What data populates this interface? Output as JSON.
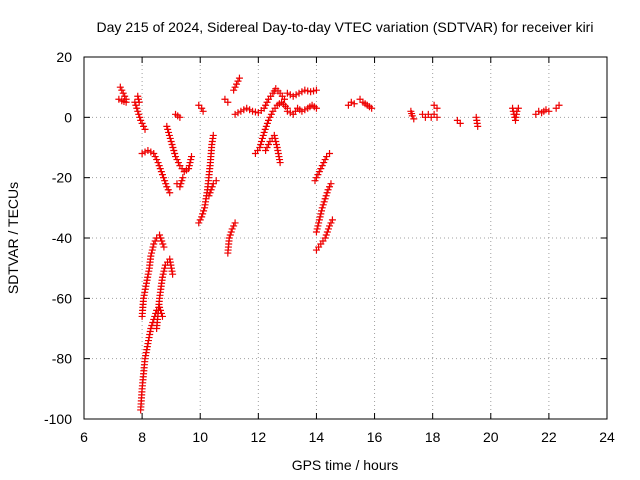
{
  "chart_data": {
    "type": "scatter",
    "title": "Day 215 of 2024, Sidereal Day-to-day VTEC variation (SDTVAR) for receiver kiri",
    "xlabel": "GPS time / hours",
    "ylabel": "SDTVAR / TECUs",
    "xlim": [
      6,
      24
    ],
    "ylim": [
      -100,
      20
    ],
    "xticks": [
      "6",
      "8",
      "10",
      "12",
      "14",
      "16",
      "18",
      "20",
      "22",
      "24"
    ],
    "yticks": [
      "20",
      "0",
      "-20",
      "-40",
      "-60",
      "-80",
      "-100"
    ],
    "grid": true,
    "marker": "plus",
    "color": "#ee0000",
    "arcs": [
      [
        [
          7.25,
          10
        ],
        [
          7.35,
          8
        ],
        [
          7.45,
          6
        ]
      ],
      [
        [
          7.2,
          6
        ],
        [
          7.3,
          5.5
        ],
        [
          7.45,
          5
        ]
      ],
      [
        [
          7.75,
          5
        ],
        [
          7.85,
          2
        ],
        [
          7.95,
          -1
        ],
        [
          8.05,
          -3
        ],
        [
          8.1,
          -4
        ]
      ],
      [
        [
          7.85,
          7
        ],
        [
          7.9,
          5
        ]
      ],
      [
        [
          8.0,
          -12
        ],
        [
          8.2,
          -11
        ],
        [
          8.4,
          -12
        ],
        [
          8.55,
          -15
        ],
        [
          8.7,
          -19
        ],
        [
          8.85,
          -23
        ],
        [
          8.95,
          -25
        ]
      ],
      [
        [
          8.0,
          -66
        ],
        [
          8.05,
          -60
        ],
        [
          8.15,
          -55
        ],
        [
          8.25,
          -50
        ],
        [
          8.3,
          -46
        ],
        [
          8.4,
          -42
        ],
        [
          8.5,
          -40
        ],
        [
          8.6,
          -39
        ],
        [
          8.75,
          -43
        ]
      ],
      [
        [
          7.95,
          -97
        ],
        [
          8.0,
          -90
        ],
        [
          8.05,
          -85
        ],
        [
          8.1,
          -80
        ],
        [
          8.2,
          -75
        ],
        [
          8.3,
          -70
        ],
        [
          8.4,
          -67
        ],
        [
          8.5,
          -64
        ],
        [
          8.6,
          -63
        ],
        [
          8.7,
          -66
        ]
      ],
      [
        [
          8.5,
          -70
        ],
        [
          8.6,
          -60
        ],
        [
          8.7,
          -53
        ],
        [
          8.8,
          -49
        ],
        [
          8.95,
          -47
        ],
        [
          9.05,
          -52
        ]
      ],
      [
        [
          8.85,
          -3
        ],
        [
          9.0,
          -8
        ],
        [
          9.15,
          -13
        ],
        [
          9.3,
          -16
        ],
        [
          9.45,
          -18
        ],
        [
          9.6,
          -17
        ],
        [
          9.7,
          -13
        ]
      ],
      [
        [
          9.15,
          1
        ],
        [
          9.3,
          0
        ]
      ],
      [
        [
          9.2,
          -22
        ],
        [
          9.3,
          -23
        ],
        [
          9.4,
          -20
        ]
      ],
      [
        [
          9.95,
          4
        ],
        [
          10.05,
          3
        ],
        [
          10.1,
          2
        ]
      ],
      [
        [
          9.95,
          -35
        ],
        [
          10.05,
          -33
        ],
        [
          10.15,
          -30
        ],
        [
          10.25,
          -24
        ],
        [
          10.35,
          -15
        ],
        [
          10.4,
          -9
        ],
        [
          10.45,
          -6
        ]
      ],
      [
        [
          10.3,
          -26
        ],
        [
          10.45,
          -22
        ],
        [
          10.55,
          -21
        ]
      ],
      [
        [
          10.85,
          6
        ],
        [
          10.95,
          5
        ]
      ],
      [
        [
          10.95,
          -45
        ],
        [
          11.0,
          -40
        ],
        [
          11.1,
          -37
        ],
        [
          11.2,
          -35
        ]
      ],
      [
        [
          11.15,
          9
        ],
        [
          11.25,
          11
        ],
        [
          11.35,
          13
        ]
      ],
      [
        [
          11.2,
          1
        ],
        [
          11.4,
          2
        ],
        [
          11.6,
          3
        ],
        [
          11.8,
          2
        ],
        [
          12.0,
          1.5
        ],
        [
          12.2,
          3
        ],
        [
          12.35,
          6
        ],
        [
          12.5,
          8
        ],
        [
          12.6,
          9.5
        ],
        [
          12.75,
          8
        ],
        [
          12.9,
          6
        ]
      ],
      [
        [
          11.9,
          -12
        ],
        [
          12.05,
          -10
        ],
        [
          12.2,
          -5
        ],
        [
          12.35,
          -1
        ],
        [
          12.5,
          2
        ],
        [
          12.65,
          4
        ],
        [
          12.8,
          5
        ],
        [
          13.0,
          3
        ]
      ],
      [
        [
          12.25,
          -11
        ],
        [
          12.4,
          -8
        ],
        [
          12.55,
          -6
        ],
        [
          12.65,
          -10
        ],
        [
          12.75,
          -15
        ]
      ],
      [
        [
          13.0,
          8
        ],
        [
          13.2,
          7
        ],
        [
          13.4,
          8
        ],
        [
          13.6,
          9
        ],
        [
          13.8,
          8.5
        ],
        [
          14.0,
          9
        ]
      ],
      [
        [
          13.0,
          2
        ],
        [
          13.2,
          1
        ],
        [
          13.35,
          3
        ],
        [
          13.5,
          2
        ],
        [
          13.7,
          3
        ],
        [
          13.85,
          4
        ],
        [
          14.0,
          3
        ]
      ],
      [
        [
          13.95,
          -21
        ],
        [
          14.05,
          -19
        ],
        [
          14.15,
          -17
        ],
        [
          14.25,
          -15
        ],
        [
          14.35,
          -13
        ],
        [
          14.45,
          -12
        ]
      ],
      [
        [
          14.0,
          -38
        ],
        [
          14.1,
          -34
        ],
        [
          14.2,
          -30
        ],
        [
          14.3,
          -27
        ],
        [
          14.4,
          -24
        ],
        [
          14.5,
          -22
        ]
      ],
      [
        [
          14.0,
          -44
        ],
        [
          14.15,
          -42
        ],
        [
          14.3,
          -40
        ],
        [
          14.45,
          -36
        ],
        [
          14.55,
          -34
        ]
      ],
      [
        [
          15.1,
          4
        ],
        [
          15.2,
          5
        ],
        [
          15.3,
          4.5
        ]
      ],
      [
        [
          15.5,
          6
        ],
        [
          15.6,
          5
        ],
        [
          15.75,
          4
        ],
        [
          15.9,
          3
        ]
      ],
      [
        [
          17.25,
          2
        ],
        [
          17.3,
          0.5
        ],
        [
          17.35,
          -0.5
        ]
      ],
      [
        [
          17.65,
          1
        ],
        [
          17.75,
          0
        ],
        [
          17.85,
          1
        ],
        [
          17.95,
          0
        ],
        [
          18.05,
          1
        ],
        [
          18.15,
          0
        ]
      ],
      [
        [
          18.05,
          4
        ],
        [
          18.15,
          3
        ]
      ],
      [
        [
          18.85,
          -1
        ],
        [
          18.95,
          -2
        ]
      ],
      [
        [
          19.5,
          0
        ],
        [
          19.55,
          -3
        ]
      ],
      [
        [
          20.75,
          3
        ],
        [
          20.8,
          1
        ],
        [
          20.85,
          -1
        ],
        [
          20.9,
          2
        ],
        [
          20.95,
          3
        ]
      ],
      [
        [
          21.55,
          1
        ],
        [
          21.65,
          2
        ],
        [
          21.75,
          1.5
        ],
        [
          21.9,
          2.5
        ],
        [
          22.0,
          2
        ]
      ],
      [
        [
          22.25,
          3
        ],
        [
          22.35,
          4
        ]
      ]
    ]
  }
}
